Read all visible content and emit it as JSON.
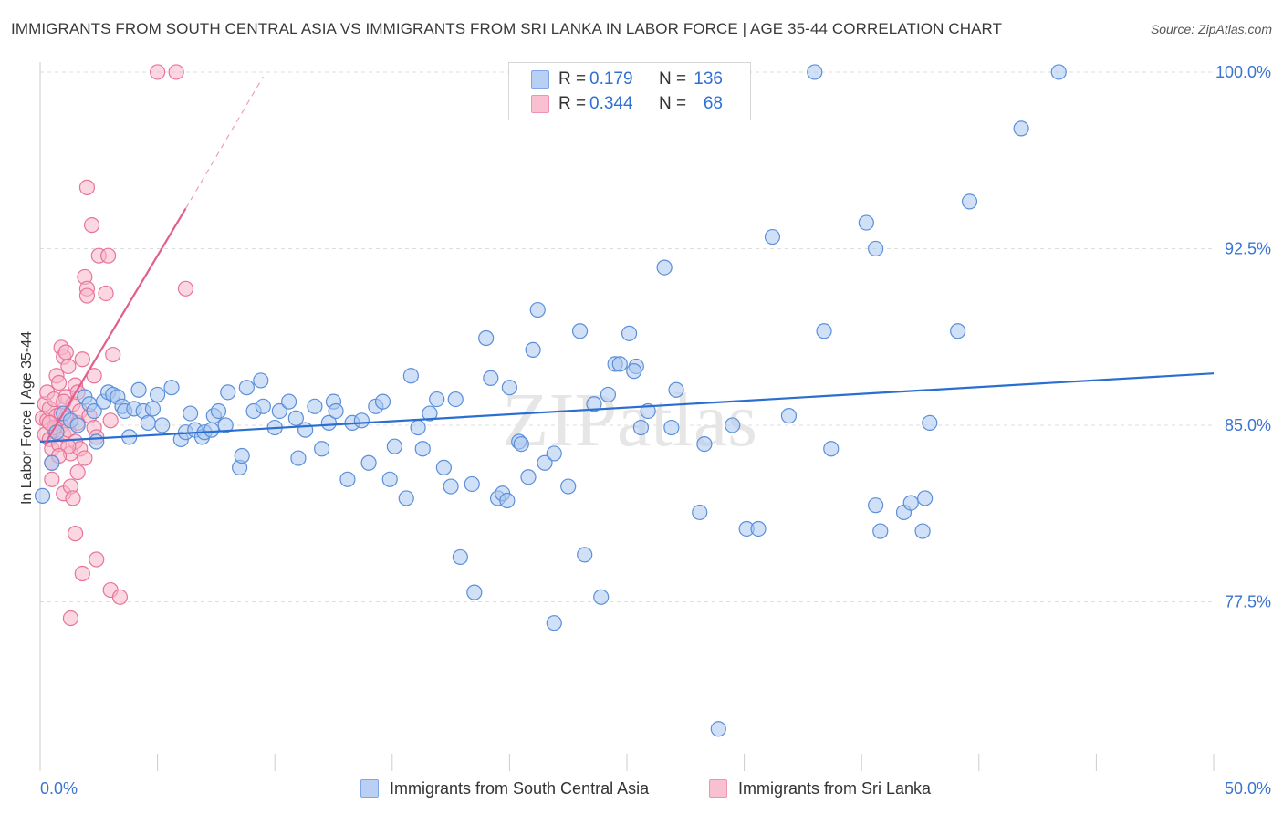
{
  "title": "IMMIGRANTS FROM SOUTH CENTRAL ASIA VS IMMIGRANTS FROM SRI LANKA IN LABOR FORCE | AGE 35-44 CORRELATION CHART",
  "source": "Source: ZipAtlas.com",
  "watermark": "ZIPatlas",
  "legend": {
    "series": [
      {
        "r_label": "R =",
        "r_value": "0.179",
        "n_label": "N =",
        "n_value": "136",
        "fill": "#b9cff4",
        "stroke": "#7ea6e6"
      },
      {
        "r_label": "R =",
        "r_value": "0.344",
        "n_label": "N =",
        "n_value": "68",
        "fill": "#f8c0d0",
        "stroke": "#ee93b0"
      }
    ]
  },
  "colors": {
    "blue_fill": "#a9c6f0",
    "blue_stroke": "#5b8fd9",
    "blue_line": "#2a6fd0",
    "pink_fill": "#f6b6c9",
    "pink_stroke": "#e8749b",
    "pink_line": "#e25f8c",
    "axis_text": "#3b74d1",
    "grid": "#dddddd"
  },
  "chart_data": {
    "type": "scatter",
    "title": "IMMIGRANTS FROM SOUTH CENTRAL ASIA VS IMMIGRANTS FROM SRI LANKA IN LABOR FORCE | AGE 35-44 CORRELATION CHART",
    "xlabel": "",
    "ylabel": "In Labor Force | Age 35-44",
    "xlim": [
      0,
      50
    ],
    "ylim": [
      71.2,
      101.2
    ],
    "x_tick_labels": [
      "0.0%",
      "50.0%"
    ],
    "y_ticks": [
      77.5,
      85.0,
      92.5,
      100.0
    ],
    "y_tick_labels": [
      "77.5%",
      "85.0%",
      "92.5%",
      "100.0%"
    ],
    "grid": true,
    "legend_placement": "bottom",
    "series": [
      {
        "name": "Immigrants from South Central Asia",
        "trend": {
          "x": [
            0,
            50
          ],
          "y": [
            84.3,
            87.2
          ]
        },
        "points": [
          [
            0.1,
            82
          ],
          [
            0.5,
            83.4
          ],
          [
            0.7,
            84.7
          ],
          [
            1.0,
            85.5
          ],
          [
            1.3,
            85.2
          ],
          [
            1.6,
            85.0
          ],
          [
            1.9,
            86.2
          ],
          [
            2.1,
            85.9
          ],
          [
            2.3,
            85.6
          ],
          [
            2.4,
            84.3
          ],
          [
            2.7,
            86.0
          ],
          [
            2.9,
            86.4
          ],
          [
            3.1,
            86.3
          ],
          [
            3.3,
            86.2
          ],
          [
            3.5,
            85.8
          ],
          [
            3.6,
            85.6
          ],
          [
            3.8,
            84.5
          ],
          [
            4.0,
            85.7
          ],
          [
            4.2,
            86.5
          ],
          [
            4.4,
            85.6
          ],
          [
            4.6,
            85.1
          ],
          [
            4.8,
            85.7
          ],
          [
            5.0,
            86.3
          ],
          [
            5.2,
            85.0
          ],
          [
            5.6,
            86.6
          ],
          [
            6.0,
            84.4
          ],
          [
            6.2,
            84.7
          ],
          [
            6.4,
            85.5
          ],
          [
            6.6,
            84.8
          ],
          [
            6.9,
            84.5
          ],
          [
            7.0,
            84.7
          ],
          [
            7.3,
            84.8
          ],
          [
            7.4,
            85.4
          ],
          [
            7.6,
            85.6
          ],
          [
            7.9,
            85.0
          ],
          [
            8.0,
            86.4
          ],
          [
            8.5,
            83.2
          ],
          [
            8.6,
            83.7
          ],
          [
            8.8,
            86.6
          ],
          [
            9.1,
            85.6
          ],
          [
            9.4,
            86.9
          ],
          [
            9.5,
            85.8
          ],
          [
            10.0,
            84.9
          ],
          [
            10.2,
            85.6
          ],
          [
            10.6,
            86.0
          ],
          [
            10.9,
            85.3
          ],
          [
            11.0,
            83.6
          ],
          [
            11.3,
            84.8
          ],
          [
            11.7,
            85.8
          ],
          [
            12.0,
            84.0
          ],
          [
            12.3,
            85.1
          ],
          [
            12.5,
            86.0
          ],
          [
            12.6,
            85.6
          ],
          [
            13.1,
            82.7
          ],
          [
            13.3,
            85.1
          ],
          [
            13.7,
            85.2
          ],
          [
            14.0,
            83.4
          ],
          [
            14.3,
            85.8
          ],
          [
            14.6,
            86.0
          ],
          [
            14.9,
            82.7
          ],
          [
            15.1,
            84.1
          ],
          [
            15.6,
            81.9
          ],
          [
            15.8,
            87.1
          ],
          [
            16.1,
            84.9
          ],
          [
            16.3,
            84.0
          ],
          [
            16.6,
            85.5
          ],
          [
            16.9,
            86.1
          ],
          [
            17.2,
            83.2
          ],
          [
            17.5,
            82.4
          ],
          [
            17.7,
            86.1
          ],
          [
            17.9,
            79.4
          ],
          [
            18.4,
            82.5
          ],
          [
            18.5,
            77.9
          ],
          [
            19.0,
            88.7
          ],
          [
            19.2,
            87.0
          ],
          [
            19.5,
            81.9
          ],
          [
            19.7,
            82.1
          ],
          [
            19.9,
            81.8
          ],
          [
            20.0,
            86.6
          ],
          [
            20.4,
            84.3
          ],
          [
            20.5,
            84.2
          ],
          [
            20.8,
            82.8
          ],
          [
            21.0,
            88.2
          ],
          [
            21.2,
            89.9
          ],
          [
            21.5,
            83.4
          ],
          [
            21.9,
            83.8
          ],
          [
            21.9,
            76.6
          ],
          [
            22.5,
            82.4
          ],
          [
            23.0,
            89.0
          ],
          [
            23.2,
            79.5
          ],
          [
            23.6,
            85.9
          ],
          [
            23.9,
            77.7
          ],
          [
            24.2,
            86.3
          ],
          [
            24.5,
            87.6
          ],
          [
            24.7,
            87.6
          ],
          [
            25.1,
            88.9
          ],
          [
            25.4,
            87.5
          ],
          [
            25.3,
            87.3
          ],
          [
            25.6,
            84.9
          ],
          [
            25.9,
            85.6
          ],
          [
            26.6,
            91.7
          ],
          [
            26.9,
            84.9
          ],
          [
            27.1,
            86.5
          ],
          [
            28.1,
            81.3
          ],
          [
            28.3,
            84.2
          ],
          [
            28.9,
            72.1
          ],
          [
            29.5,
            85.0
          ],
          [
            30.1,
            80.6
          ],
          [
            30.6,
            80.6
          ],
          [
            31.2,
            93.0
          ],
          [
            31.9,
            85.4
          ],
          [
            33.0,
            100.0
          ],
          [
            33.4,
            89.0
          ],
          [
            33.7,
            84.0
          ],
          [
            35.2,
            93.6
          ],
          [
            35.6,
            92.5
          ],
          [
            35.6,
            81.6
          ],
          [
            35.8,
            80.5
          ],
          [
            36.8,
            81.3
          ],
          [
            37.1,
            81.7
          ],
          [
            37.7,
            81.9
          ],
          [
            37.6,
            80.5
          ],
          [
            37.9,
            85.1
          ],
          [
            39.1,
            89.0
          ],
          [
            39.6,
            94.5
          ],
          [
            41.8,
            97.6
          ],
          [
            43.4,
            100.0
          ]
        ]
      },
      {
        "name": "Immigrants from Sri Lanka",
        "trend": {
          "x": [
            0.2,
            6.2
          ],
          "y": [
            84.2,
            94.2
          ]
        },
        "trend_extension": {
          "x": [
            6.2,
            9.5
          ],
          "y": [
            94.2,
            99.8
          ]
        },
        "points": [
          [
            0.1,
            85.3
          ],
          [
            0.2,
            84.6
          ],
          [
            0.2,
            85.9
          ],
          [
            0.3,
            86.4
          ],
          [
            0.3,
            85.2
          ],
          [
            0.4,
            84.4
          ],
          [
            0.4,
            85.7
          ],
          [
            0.5,
            84.0
          ],
          [
            0.5,
            83.4
          ],
          [
            0.5,
            82.7
          ],
          [
            0.6,
            86.1
          ],
          [
            0.6,
            84.8
          ],
          [
            0.7,
            87.1
          ],
          [
            0.7,
            85.4
          ],
          [
            0.8,
            84.2
          ],
          [
            0.8,
            86.8
          ],
          [
            0.9,
            88.3
          ],
          [
            0.9,
            85.0
          ],
          [
            1.0,
            87.9
          ],
          [
            1.0,
            84.6
          ],
          [
            1.0,
            82.1
          ],
          [
            1.1,
            88.1
          ],
          [
            1.1,
            86.2
          ],
          [
            1.1,
            85.3
          ],
          [
            1.2,
            87.5
          ],
          [
            1.2,
            84.8
          ],
          [
            1.3,
            82.4
          ],
          [
            1.3,
            83.8
          ],
          [
            1.4,
            85.9
          ],
          [
            1.4,
            81.9
          ],
          [
            1.5,
            86.7
          ],
          [
            1.5,
            84.3
          ],
          [
            1.5,
            80.4
          ],
          [
            1.6,
            85.1
          ],
          [
            1.6,
            83.0
          ],
          [
            1.7,
            85.6
          ],
          [
            1.7,
            84.0
          ],
          [
            1.8,
            87.8
          ],
          [
            1.9,
            83.6
          ],
          [
            1.9,
            91.3
          ],
          [
            2.0,
            95.1
          ],
          [
            2.0,
            90.8
          ],
          [
            2.1,
            85.4
          ],
          [
            2.2,
            93.5
          ],
          [
            2.3,
            84.9
          ],
          [
            2.4,
            79.3
          ],
          [
            2.5,
            92.2
          ],
          [
            2.8,
            90.6
          ],
          [
            2.9,
            92.2
          ],
          [
            3.0,
            78.0
          ],
          [
            3.1,
            88.0
          ],
          [
            3.4,
            77.7
          ],
          [
            1.8,
            78.7
          ],
          [
            2.0,
            90.5
          ],
          [
            1.3,
            76.8
          ],
          [
            2.3,
            87.1
          ],
          [
            1.6,
            86.4
          ],
          [
            0.9,
            85.5
          ],
          [
            0.6,
            84.9
          ],
          [
            1.2,
            84.1
          ],
          [
            2.4,
            84.5
          ],
          [
            0.4,
            85.1
          ],
          [
            3.0,
            85.2
          ],
          [
            5.0,
            100.0
          ],
          [
            5.8,
            100.0
          ],
          [
            6.2,
            90.8
          ],
          [
            0.8,
            83.7
          ],
          [
            1.0,
            86.0
          ]
        ]
      }
    ]
  },
  "bottom_legend": {
    "items": [
      {
        "label": "Immigrants from South Central Asia"
      },
      {
        "label": "Immigrants from Sri Lanka"
      }
    ]
  }
}
